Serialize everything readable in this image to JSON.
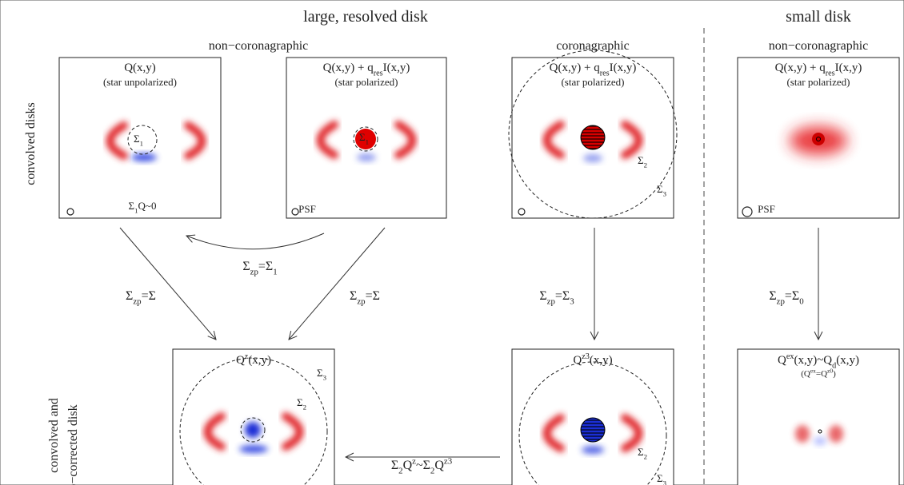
{
  "header": {
    "left_title": "large, resolved disk",
    "right_title": "small disk",
    "columns": [
      "non−coronagraphic",
      "coronagraphic",
      "non−coronagraphic"
    ]
  },
  "row_labels": {
    "top": "convolved disks",
    "bottom": [
      "convolved and",
      "p−corrected disk"
    ]
  },
  "panels": [
    {
      "title": [
        {
          "text": "Q(x,y)"
        }
      ],
      "subtitle": [
        {
          "text": "(star unpolarized)"
        }
      ],
      "labels": [
        [
          {
            "text": "Σ"
          },
          {
            "sub": "1"
          }
        ],
        [
          {
            "text": "Σ"
          },
          {
            "sub": "1"
          },
          {
            "text": "Q~0"
          }
        ]
      ]
    },
    {
      "title": [
        {
          "text": "Q(x,y) + q"
        },
        {
          "sub": "res"
        },
        {
          "text": "I(x,y)"
        }
      ],
      "subtitle": [
        {
          "text": "(star polarized)"
        }
      ],
      "labels": [
        [
          {
            "text": "Σ"
          },
          {
            "sub": "1"
          }
        ],
        [
          {
            "text": "PSF"
          }
        ]
      ]
    },
    {
      "title": [
        {
          "text": "Q(x,y) + q"
        },
        {
          "sub": "res"
        },
        {
          "text": "I(x,y)"
        }
      ],
      "subtitle": [
        {
          "text": "(star polarized)"
        }
      ],
      "labels": [
        [
          {
            "text": "Σ"
          },
          {
            "sub": "2"
          }
        ],
        [
          {
            "text": "Σ"
          },
          {
            "sub": "3"
          }
        ]
      ]
    },
    {
      "title": [
        {
          "text": "Q(x,y) + q"
        },
        {
          "sub": "res"
        },
        {
          "text": "I(x,y)"
        }
      ],
      "subtitle": [
        {
          "text": "(star polarized)"
        }
      ],
      "labels": [
        [
          {
            "text": "PSF"
          }
        ]
      ]
    },
    {
      "title": [
        {
          "text": "Q"
        },
        {
          "sup": "z"
        },
        {
          "text": "(x,y)"
        }
      ],
      "labels": [
        [
          {
            "text": "Σ"
          },
          {
            "sub": "3"
          }
        ],
        [
          {
            "text": "Σ"
          },
          {
            "sub": "2"
          }
        ]
      ]
    },
    {
      "title": [
        {
          "text": "Q"
        },
        {
          "sup": "z3"
        },
        {
          "text": "(x,y)"
        }
      ],
      "labels": [
        [
          {
            "text": "Σ"
          },
          {
            "sub": "2"
          }
        ],
        [
          {
            "text": "Σ"
          },
          {
            "sub": "3"
          }
        ]
      ]
    },
    {
      "title": [
        {
          "text": "Q"
        },
        {
          "sup": "ex"
        },
        {
          "text": "(x,y)~Q"
        },
        {
          "sub": "d"
        },
        {
          "text": "(x,y)"
        }
      ],
      "subtitle": [
        {
          "text": "(Q"
        },
        {
          "sup": "ex"
        },
        {
          "text": "=Q"
        },
        {
          "sup": "z0"
        },
        {
          "text": ")"
        }
      ],
      "labels": []
    }
  ],
  "arrows": [
    {
      "label": [
        {
          "text": "Σ"
        },
        {
          "sub": "zp"
        },
        {
          "text": "=Σ"
        },
        {
          "sub": "1"
        }
      ]
    },
    {
      "label": [
        {
          "text": "Σ"
        },
        {
          "sub": "zp"
        },
        {
          "text": "=Σ"
        }
      ]
    },
    {
      "label": [
        {
          "text": "Σ"
        },
        {
          "sub": "zp"
        },
        {
          "text": "=Σ"
        }
      ]
    },
    {
      "label": [
        {
          "text": "Σ"
        },
        {
          "sub": "zp"
        },
        {
          "text": "=Σ"
        },
        {
          "sub": "3"
        }
      ]
    },
    {
      "label": [
        {
          "text": "Σ"
        },
        {
          "sub": "zp"
        },
        {
          "text": "=Σ"
        },
        {
          "sub": "0"
        }
      ]
    },
    {
      "label": [
        {
          "text": "Σ"
        },
        {
          "sub": "2"
        },
        {
          "text": "Q"
        },
        {
          "sup": "z"
        },
        {
          "text": "~Σ"
        },
        {
          "sub": "2"
        },
        {
          "text": "Q"
        },
        {
          "sup": "z3"
        }
      ]
    }
  ]
}
